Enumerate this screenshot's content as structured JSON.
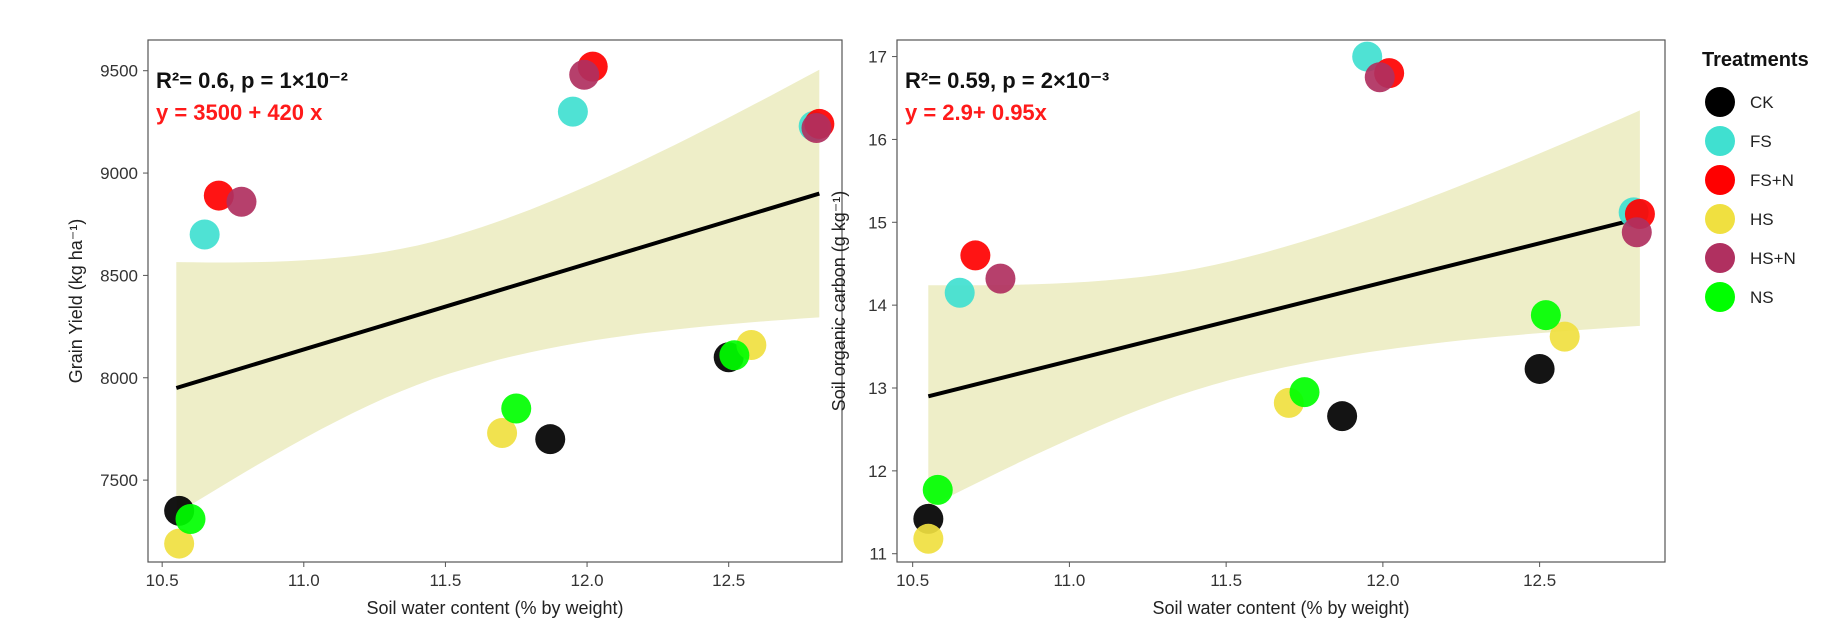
{
  "legend": {
    "title": "Treatments",
    "entries": [
      {
        "label": "CK",
        "color": "#000000"
      },
      {
        "label": "FS",
        "color": "#40e0d0"
      },
      {
        "label": "FS+N",
        "color": "#ff0000"
      },
      {
        "label": "HS",
        "color": "#f0e040"
      },
      {
        "label": "HS+N",
        "color": "#b03060"
      },
      {
        "label": "NS",
        "color": "#00ff00"
      }
    ]
  },
  "chart_data": [
    {
      "type": "scatter",
      "xlabel": "Soil water content (% by weight)",
      "ylabel": "Grain Yield (kg ha⁻¹)",
      "xlim": [
        10.45,
        12.9
      ],
      "ylim": [
        7100,
        9650
      ],
      "xticks": [
        10.5,
        11.0,
        11.5,
        12.0,
        12.5
      ],
      "xtick_labels": [
        "10.5",
        "11.0",
        "11.5",
        "12.0",
        "12.5"
      ],
      "yticks": [
        7500,
        8000,
        8500,
        9000,
        9500
      ],
      "ytick_labels": [
        "7500",
        "8000",
        "8500",
        "9000",
        "9500"
      ],
      "stats_r2": "R²= 0.6, p = 1×10⁻²",
      "equation": "y = 3500 + 420 x",
      "fit": {
        "x": [
          10.55,
          12.82
        ],
        "y": [
          7950,
          8900
        ]
      },
      "ci_band": {
        "x": [
          10.55,
          12.82
        ],
        "upper": [
          8580,
          9500
        ],
        "lower": [
          7350,
          8290
        ]
      },
      "series": [
        {
          "name": "CK",
          "points": [
            [
              10.56,
              7350
            ],
            [
              11.87,
              7700
            ],
            [
              12.5,
              8100
            ]
          ]
        },
        {
          "name": "FS",
          "points": [
            [
              10.65,
              8700
            ],
            [
              11.95,
              9300
            ],
            [
              12.8,
              9230
            ]
          ]
        },
        {
          "name": "FS+N",
          "points": [
            [
              10.7,
              8890
            ],
            [
              12.02,
              9520
            ],
            [
              12.82,
              9240
            ]
          ]
        },
        {
          "name": "HS",
          "points": [
            [
              10.56,
              7190
            ],
            [
              11.7,
              7730
            ],
            [
              12.58,
              8160
            ]
          ]
        },
        {
          "name": "HS+N",
          "points": [
            [
              10.78,
              8860
            ],
            [
              11.99,
              9480
            ],
            [
              12.81,
              9220
            ]
          ]
        },
        {
          "name": "NS",
          "points": [
            [
              10.6,
              7310
            ],
            [
              11.75,
              7850
            ],
            [
              12.52,
              8110
            ]
          ]
        }
      ]
    },
    {
      "type": "scatter",
      "xlabel": "Soil water content (% by weight)",
      "ylabel": "Soil organic carbon (g kg⁻¹)",
      "xlim": [
        10.45,
        12.9
      ],
      "ylim": [
        10.9,
        17.2
      ],
      "xticks": [
        10.5,
        11.0,
        11.5,
        12.0,
        12.5
      ],
      "xtick_labels": [
        "10.5",
        "11.0",
        "11.5",
        "12.0",
        "12.5"
      ],
      "yticks": [
        11,
        12,
        13,
        14,
        15,
        16,
        17
      ],
      "ytick_labels": [
        "11",
        "12",
        "13",
        "14",
        "15",
        "16",
        "17"
      ],
      "stats_r2": "R²= 0.59, p = 2×10⁻³",
      "equation": "y = 2.9+ 0.95x",
      "fit": {
        "x": [
          10.55,
          12.82
        ],
        "y": [
          12.9,
          15.05
        ]
      },
      "ci_band": {
        "x": [
          10.55,
          12.82
        ],
        "upper": [
          14.28,
          16.35
        ],
        "lower": [
          11.6,
          13.75
        ]
      },
      "series": [
        {
          "name": "CK",
          "points": [
            [
              10.55,
              11.42
            ],
            [
              11.87,
              12.66
            ],
            [
              12.5,
              13.23
            ]
          ]
        },
        {
          "name": "FS",
          "points": [
            [
              10.65,
              14.15
            ],
            [
              11.95,
              17.0
            ],
            [
              12.8,
              15.12
            ]
          ]
        },
        {
          "name": "FS+N",
          "points": [
            [
              10.7,
              14.6
            ],
            [
              12.02,
              16.8
            ],
            [
              12.82,
              15.1
            ]
          ]
        },
        {
          "name": "HS",
          "points": [
            [
              10.55,
              11.18
            ],
            [
              11.7,
              12.82
            ],
            [
              12.58,
              13.62
            ]
          ]
        },
        {
          "name": "HS+N",
          "points": [
            [
              10.78,
              14.32
            ],
            [
              11.99,
              16.75
            ],
            [
              12.81,
              14.88
            ]
          ]
        },
        {
          "name": "NS",
          "points": [
            [
              10.58,
              11.77
            ],
            [
              11.75,
              12.95
            ],
            [
              12.52,
              13.88
            ]
          ]
        }
      ]
    }
  ]
}
